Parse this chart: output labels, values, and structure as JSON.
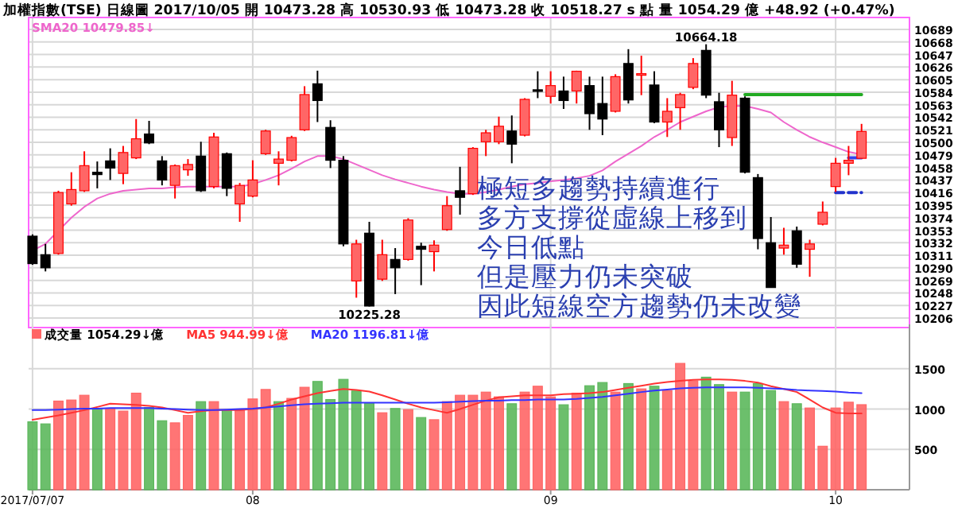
{
  "chart_data": [
    {
      "type": "candlestick",
      "title": "加權指數(TSE)  日線圖  2017/10/05  開 10473.28  高 10530.93  低 10473.28  收 10518.27  s 點  量 1054.29 億  +48.92 (+0.47%)",
      "categories": [
        "2017/07/07",
        null,
        null,
        null,
        null,
        null,
        null,
        null,
        null,
        null,
        null,
        null,
        null,
        null,
        null,
        null,
        null,
        "08",
        null,
        null,
        null,
        null,
        null,
        null,
        null,
        null,
        null,
        null,
        null,
        null,
        null,
        null,
        null,
        null,
        null,
        null,
        null,
        null,
        null,
        null,
        "09",
        null,
        null,
        null,
        null,
        null,
        null,
        null,
        null,
        null,
        null,
        null,
        null,
        null,
        null,
        null,
        null,
        null,
        null,
        null,
        null,
        null,
        "10",
        null,
        null
      ],
      "tick_labels": "y",
      "grid": true,
      "legend": "top left",
      "ylim": [
        10190,
        10709
      ],
      "yticks": [
        10206,
        10227,
        10248,
        10269,
        10290,
        10311,
        10332,
        10353,
        10374,
        10395,
        10416,
        10437,
        10458,
        10479,
        10500,
        10521,
        10542,
        10563,
        10584,
        10605,
        10626,
        10647,
        10668,
        10689
      ],
      "ohlc": [
        [
          10343,
          10346,
          10295,
          10297
        ],
        [
          10312,
          10330,
          10284,
          10290
        ],
        [
          10314,
          10419,
          10312,
          10416
        ],
        [
          10397,
          10450,
          10394,
          10421
        ],
        [
          10419,
          10485,
          10417,
          10461
        ],
        [
          10450,
          10468,
          10423,
          10446
        ],
        [
          10469,
          10490,
          10437,
          10457
        ],
        [
          10448,
          10494,
          10430,
          10483
        ],
        [
          10474,
          10539,
          10472,
          10506
        ],
        [
          10514,
          10536,
          10497,
          10499
        ],
        [
          10469,
          10477,
          10428,
          10437
        ],
        [
          10428,
          10463,
          10406,
          10461
        ],
        [
          10454,
          10472,
          10444,
          10463
        ],
        [
          10477,
          10501,
          10417,
          10419
        ],
        [
          10426,
          10516,
          10423,
          10509
        ],
        [
          10481,
          10483,
          10410,
          10423
        ],
        [
          10397,
          10432,
          10367,
          10428
        ],
        [
          10410,
          10470,
          10408,
          10437
        ],
        [
          10481,
          10521,
          10479,
          10519
        ],
        [
          10465,
          10485,
          10428,
          10472
        ],
        [
          10470,
          10511,
          10468,
          10508
        ],
        [
          10521,
          10594,
          10519,
          10580
        ],
        [
          10598,
          10620,
          10534,
          10570
        ],
        [
          10525,
          10537,
          10457,
          10470
        ],
        [
          10470,
          10477,
          10326,
          10330
        ],
        [
          10268,
          10337,
          10240,
          10330
        ],
        [
          10348,
          10367,
          10225.28,
          10226
        ],
        [
          10271,
          10337,
          10268,
          10312
        ],
        [
          10304,
          10323,
          10246,
          10290
        ],
        [
          10304,
          10373,
          10302,
          10370
        ],
        [
          10326,
          10332,
          10261,
          10321
        ],
        [
          10317,
          10336,
          10284,
          10328
        ],
        [
          10354,
          10410,
          10352,
          10394
        ],
        [
          10419,
          10459,
          10379,
          10408
        ],
        [
          10414,
          10492,
          10412,
          10490
        ],
        [
          10501,
          10521,
          10477,
          10516
        ],
        [
          10501,
          10543,
          10497,
          10527
        ],
        [
          10519,
          10545,
          10465,
          10497
        ],
        [
          10512,
          10574,
          10510,
          10572
        ],
        [
          10588,
          10619,
          10574,
          10587
        ],
        [
          10577,
          10619,
          10565,
          10595
        ],
        [
          10586,
          10610,
          10556,
          10570
        ],
        [
          10586,
          10620,
          10565,
          10619
        ],
        [
          10595,
          10610,
          10521,
          10548
        ],
        [
          10565,
          10610,
          10512,
          10539
        ],
        [
          10552,
          10614,
          10550,
          10610
        ],
        [
          10632,
          10656,
          10565,
          10571
        ],
        [
          10613,
          10645,
          10579,
          10615
        ],
        [
          10596,
          10619,
          10532,
          10534
        ],
        [
          10534,
          10574,
          10509,
          10552
        ],
        [
          10558,
          10583,
          10521,
          10580
        ],
        [
          10592,
          10641,
          10589,
          10632
        ],
        [
          10654,
          10664.18,
          10574,
          10579
        ],
        [
          10568,
          10583,
          10492,
          10521
        ],
        [
          10508,
          10603,
          10494,
          10579
        ],
        [
          10574,
          10577,
          10448,
          10450
        ],
        [
          10441,
          10447,
          10321,
          10339
        ],
        [
          10332,
          10375,
          10257,
          10257
        ],
        [
          10323,
          10357,
          10312,
          10328
        ],
        [
          10352,
          10359,
          10290,
          10296
        ],
        [
          10321,
          10337,
          10275,
          10330
        ],
        [
          10363,
          10401,
          10361,
          10383
        ],
        [
          10426,
          10474,
          10417,
          10465
        ],
        [
          10465,
          10494,
          10445,
          10470
        ],
        [
          10473.28,
          10530.93,
          10473.28,
          10518.27
        ]
      ],
      "colors": [
        "#000000",
        "#000000",
        "#ff6666",
        "#ff6666",
        "#ff6666",
        "#000000",
        "#000000",
        "#ff6666",
        "#ff6666",
        "#000000",
        "#000000",
        "#ff6666",
        "#ff6666",
        "#000000",
        "#ff6666",
        "#000000",
        "#ff6666",
        "#ff6666",
        "#ff6666",
        "#ff6666",
        "#ff6666",
        "#ff6666",
        "#000000",
        "#000000",
        "#000000",
        "#ff6666",
        "#000000",
        "#ff6666",
        "#000000",
        "#ff6666",
        "#000000",
        "#ff6666",
        "#ff6666",
        "#000000",
        "#ff6666",
        "#ff6666",
        "#ff6666",
        "#000000",
        "#ff6666",
        "#000000",
        "#ff6666",
        "#000000",
        "#ff6666",
        "#000000",
        "#000000",
        "#ff6666",
        "#000000",
        "#ff6666",
        "#000000",
        "#ff6666",
        "#ff6666",
        "#ff6666",
        "#000000",
        "#000000",
        "#ff6666",
        "#000000",
        "#000000",
        "#000000",
        "#ff6666",
        "#000000",
        "#ff6666",
        "#ff6666",
        "#ff6666",
        "#ff6666",
        "#ff6666"
      ],
      "series": [
        {
          "name": "SMA20 10479.85↓",
          "type": "line",
          "color": "#ee66cc",
          "values": [
            10319,
            10330,
            10352,
            10374,
            10392,
            10406,
            10414,
            10419,
            10421,
            10423,
            10423,
            10425,
            10426,
            10426,
            10426,
            10426,
            10426,
            10430,
            10437,
            10445,
            10456,
            10468,
            10477,
            10477,
            10472,
            10463,
            10454,
            10445,
            10438,
            10432,
            10426,
            10421,
            10417,
            10414,
            10414,
            10417,
            10421,
            10426,
            10430,
            10432,
            10435,
            10437,
            10440,
            10444,
            10453,
            10468,
            10481,
            10494,
            10509,
            10521,
            10534,
            10543,
            10552,
            10559,
            10561,
            10561,
            10556,
            10550,
            10534,
            10521,
            10509,
            10500,
            10492,
            10484,
            10479.85
          ]
        },
        {
          "type": "line",
          "color": "#22aa22",
          "values": [
            null,
            null,
            null,
            null,
            null,
            null,
            null,
            null,
            null,
            null,
            null,
            null,
            null,
            null,
            null,
            null,
            null,
            null,
            null,
            null,
            null,
            null,
            null,
            null,
            null,
            null,
            null,
            null,
            null,
            null,
            null,
            null,
            null,
            null,
            null,
            null,
            null,
            null,
            null,
            null,
            null,
            null,
            null,
            null,
            null,
            null,
            null,
            null,
            null,
            null,
            null,
            null,
            null,
            null,
            null,
            10580,
            10580,
            10580,
            10580,
            10580,
            10580,
            10580,
            10580,
            10580,
            10580
          ]
        },
        {
          "type": "line",
          "color": "#2233cc",
          "line_style": "dashed",
          "values": [
            null,
            null,
            null,
            null,
            null,
            null,
            null,
            null,
            null,
            null,
            null,
            null,
            null,
            null,
            null,
            null,
            null,
            null,
            null,
            null,
            null,
            null,
            null,
            null,
            null,
            null,
            null,
            null,
            null,
            null,
            null,
            null,
            null,
            null,
            null,
            null,
            null,
            null,
            null,
            null,
            null,
            null,
            null,
            null,
            null,
            null,
            null,
            null,
            null,
            null,
            null,
            null,
            null,
            null,
            null,
            null,
            null,
            null,
            null,
            null,
            null,
            null,
            10416,
            10416,
            10416
          ]
        },
        {
          "type": "line",
          "color": "#3344ee",
          "values": [
            null,
            null,
            null,
            null,
            null,
            null,
            null,
            null,
            null,
            null,
            null,
            null,
            null,
            null,
            null,
            null,
            null,
            null,
            null,
            null,
            null,
            null,
            null,
            null,
            null,
            null,
            null,
            null,
            null,
            null,
            null,
            null,
            null,
            null,
            null,
            null,
            null,
            null,
            null,
            null,
            null,
            null,
            null,
            null,
            null,
            null,
            null,
            null,
            null,
            null,
            null,
            null,
            null,
            null,
            null,
            null,
            null,
            null,
            null,
            null,
            null,
            null,
            null,
            10474,
            10474
          ]
        }
      ],
      "annotations": [
        {
          "text": "10664.18",
          "y": 10664.18
        },
        {
          "text": "10225.28",
          "y": 10225.28
        },
        "極短多趨勢持續進行",
        "多方支撐從虛線上移到",
        "今日低點",
        "但是壓力仍未突破",
        "因此短線空方趨勢仍未改變"
      ]
    },
    {
      "type": "bar",
      "categories": [
        "2017/07/07",
        null,
        null,
        null,
        null,
        null,
        null,
        null,
        null,
        null,
        null,
        null,
        null,
        null,
        null,
        null,
        null,
        "08",
        null,
        null,
        null,
        null,
        null,
        null,
        null,
        null,
        null,
        null,
        null,
        null,
        null,
        null,
        null,
        null,
        null,
        null,
        null,
        null,
        null,
        null,
        "09",
        null,
        null,
        null,
        null,
        null,
        null,
        null,
        null,
        null,
        null,
        null,
        null,
        null,
        null,
        null,
        null,
        null,
        null,
        null,
        null,
        null,
        "10",
        null,
        null
      ],
      "tick_labels": "xy",
      "grid": true,
      "legend": "top left",
      "ylim": [
        0,
        2050
      ],
      "yticks": [
        500,
        1000,
        1500
      ],
      "series": [
        {
          "name": "成交量 1054.29↓億",
          "color": "#ff6666",
          "colors": [
            "#5cb85c",
            "#5cb85c",
            "#ff6666",
            "#ff6666",
            "#ff6666",
            "#5cb85c",
            "#ff6666",
            "#ff6666",
            "#ff6666",
            "#5cb85c",
            "#5cb85c",
            "#ff6666",
            "#ff6666",
            "#5cb85c",
            "#ff6666",
            "#5cb85c",
            "#ff6666",
            "#ff6666",
            "#ff6666",
            "#5cb85c",
            "#ff6666",
            "#ff6666",
            "#5cb85c",
            "#5cb85c",
            "#5cb85c",
            "#5cb85c",
            "#5cb85c",
            "#ff6666",
            "#5cb85c",
            "#ff6666",
            "#5cb85c",
            "#ff6666",
            "#ff6666",
            "#ff6666",
            "#ff6666",
            "#ff6666",
            "#ff6666",
            "#5cb85c",
            "#ff6666",
            "#ff6666",
            "#ff6666",
            "#5cb85c",
            "#ff6666",
            "#5cb85c",
            "#5cb85c",
            "#ff6666",
            "#5cb85c",
            "#ff6666",
            "#5cb85c",
            "#ff6666",
            "#ff6666",
            "#ff6666",
            "#5cb85c",
            "#5cb85c",
            "#ff6666",
            "#5cb85c",
            "#5cb85c",
            "#5cb85c",
            "#ff6666",
            "#5cb85c",
            "#ff6666",
            "#ff6666",
            "#ff6666",
            "#ff6666",
            "#ff6666"
          ],
          "values": [
            842,
            816,
            1099,
            1112,
            1171,
            1007,
            1000,
            974,
            1197,
            1020,
            855,
            829,
            921,
            1092,
            1092,
            987,
            980,
            1125,
            1243,
            1092,
            1132,
            1270,
            1342,
            1118,
            1368,
            1224,
            1072,
            954,
            1007,
            993,
            895,
            868,
            1092,
            1171,
            1171,
            1210,
            1151,
            1066,
            1210,
            1283,
            1151,
            1053,
            1197,
            1289,
            1329,
            1210,
            1316,
            1250,
            1283,
            1230,
            1566,
            1349,
            1395,
            1303,
            1210,
            1210,
            1316,
            1230,
            1092,
            1066,
            1013,
            539,
            1013,
            1085,
            1054.29
          ]
        },
        {
          "name": "MA5 944.99↓億",
          "type": "line",
          "color": "#ff3333",
          "values": [
            868,
            895,
            921,
            954,
            987,
            1026,
            1066,
            1059,
            1053,
            1039,
            1020,
            987,
            954,
            974,
            987,
            987,
            987,
            1000,
            1020,
            1066,
            1118,
            1158,
            1197,
            1224,
            1250,
            1237,
            1217,
            1171,
            1118,
            1066,
            1020,
            987,
            954,
            1000,
            1053,
            1105,
            1145,
            1158,
            1171,
            1171,
            1171,
            1184,
            1191,
            1197,
            1211,
            1237,
            1263,
            1289,
            1316,
            1336,
            1349,
            1362,
            1368,
            1368,
            1362,
            1349,
            1329,
            1283,
            1250,
            1211,
            1118,
            1020,
            954,
            947,
            944.99
          ]
        },
        {
          "name": "MA20 1196.81↓億",
          "type": "line",
          "color": "#3333ff",
          "values": [
            987,
            987,
            993,
            1000,
            1006,
            1006,
            1013,
            1013,
            1013,
            1013,
            1006,
            1000,
            993,
            987,
            987,
            993,
            1000,
            1006,
            1020,
            1033,
            1046,
            1059,
            1066,
            1072,
            1079,
            1079,
            1079,
            1079,
            1079,
            1079,
            1079,
            1079,
            1085,
            1092,
            1099,
            1105,
            1105,
            1112,
            1112,
            1118,
            1118,
            1118,
            1125,
            1138,
            1151,
            1171,
            1191,
            1211,
            1230,
            1243,
            1257,
            1263,
            1270,
            1270,
            1270,
            1270,
            1263,
            1257,
            1250,
            1237,
            1230,
            1224,
            1217,
            1204,
            1196.81
          ]
        }
      ]
    }
  ]
}
